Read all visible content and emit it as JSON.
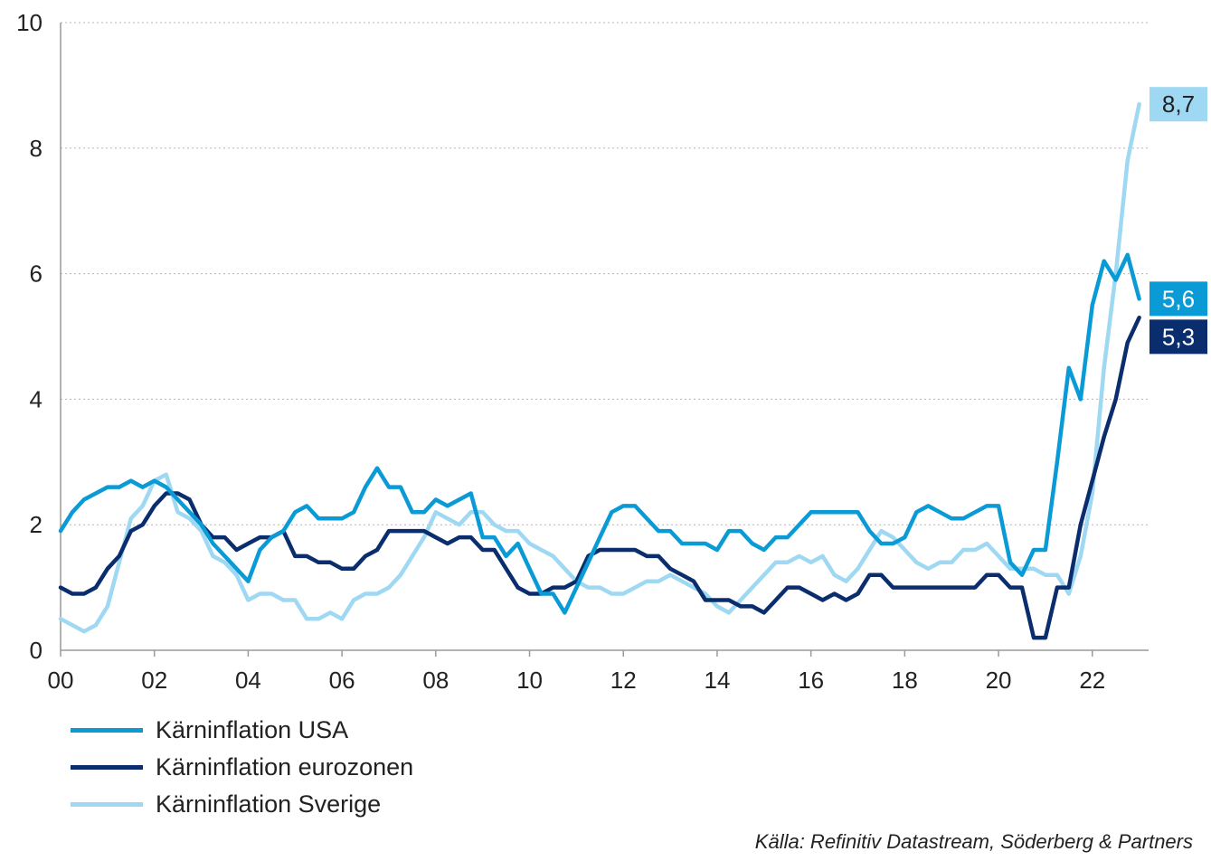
{
  "chart_data": {
    "type": "line",
    "title": "",
    "xlabel": "",
    "ylabel": "",
    "xlim": [
      2000,
      2023.2
    ],
    "ylim": [
      0,
      10
    ],
    "yticks": [
      0,
      2,
      4,
      6,
      8,
      10
    ],
    "x_ticks": [
      2000,
      2002,
      2004,
      2006,
      2008,
      2010,
      2012,
      2014,
      2016,
      2018,
      2020,
      2022
    ],
    "x_tick_labels": [
      "00",
      "02",
      "04",
      "06",
      "08",
      "10",
      "12",
      "14",
      "16",
      "18",
      "20",
      "22"
    ],
    "grid": "horizontal dotted",
    "legend_position": "bottom-left",
    "series": [
      {
        "name": "Kärninflation USA",
        "color": "#0a9bd6",
        "end_label": "5,6",
        "points": [
          [
            2000.0,
            1.9
          ],
          [
            2000.25,
            2.2
          ],
          [
            2000.5,
            2.4
          ],
          [
            2000.75,
            2.5
          ],
          [
            2001.0,
            2.6
          ],
          [
            2001.25,
            2.6
          ],
          [
            2001.5,
            2.7
          ],
          [
            2001.75,
            2.6
          ],
          [
            2002.0,
            2.7
          ],
          [
            2002.25,
            2.6
          ],
          [
            2002.5,
            2.4
          ],
          [
            2002.75,
            2.2
          ],
          [
            2003.0,
            2.0
          ],
          [
            2003.25,
            1.7
          ],
          [
            2003.5,
            1.5
          ],
          [
            2003.75,
            1.3
          ],
          [
            2004.0,
            1.1
          ],
          [
            2004.25,
            1.6
          ],
          [
            2004.5,
            1.8
          ],
          [
            2004.75,
            1.9
          ],
          [
            2005.0,
            2.2
          ],
          [
            2005.25,
            2.3
          ],
          [
            2005.5,
            2.1
          ],
          [
            2005.75,
            2.1
          ],
          [
            2006.0,
            2.1
          ],
          [
            2006.25,
            2.2
          ],
          [
            2006.5,
            2.6
          ],
          [
            2006.75,
            2.9
          ],
          [
            2007.0,
            2.6
          ],
          [
            2007.25,
            2.6
          ],
          [
            2007.5,
            2.2
          ],
          [
            2007.75,
            2.2
          ],
          [
            2008.0,
            2.4
          ],
          [
            2008.25,
            2.3
          ],
          [
            2008.5,
            2.4
          ],
          [
            2008.75,
            2.5
          ],
          [
            2009.0,
            1.8
          ],
          [
            2009.25,
            1.8
          ],
          [
            2009.5,
            1.5
          ],
          [
            2009.75,
            1.7
          ],
          [
            2010.0,
            1.3
          ],
          [
            2010.25,
            0.9
          ],
          [
            2010.5,
            0.9
          ],
          [
            2010.75,
            0.6
          ],
          [
            2011.0,
            1.0
          ],
          [
            2011.25,
            1.4
          ],
          [
            2011.5,
            1.8
          ],
          [
            2011.75,
            2.2
          ],
          [
            2012.0,
            2.3
          ],
          [
            2012.25,
            2.3
          ],
          [
            2012.5,
            2.1
          ],
          [
            2012.75,
            1.9
          ],
          [
            2013.0,
            1.9
          ],
          [
            2013.25,
            1.7
          ],
          [
            2013.5,
            1.7
          ],
          [
            2013.75,
            1.7
          ],
          [
            2014.0,
            1.6
          ],
          [
            2014.25,
            1.9
          ],
          [
            2014.5,
            1.9
          ],
          [
            2014.75,
            1.7
          ],
          [
            2015.0,
            1.6
          ],
          [
            2015.25,
            1.8
          ],
          [
            2015.5,
            1.8
          ],
          [
            2015.75,
            2.0
          ],
          [
            2016.0,
            2.2
          ],
          [
            2016.25,
            2.2
          ],
          [
            2016.5,
            2.2
          ],
          [
            2016.75,
            2.2
          ],
          [
            2017.0,
            2.2
          ],
          [
            2017.25,
            1.9
          ],
          [
            2017.5,
            1.7
          ],
          [
            2017.75,
            1.7
          ],
          [
            2018.0,
            1.8
          ],
          [
            2018.25,
            2.2
          ],
          [
            2018.5,
            2.3
          ],
          [
            2018.75,
            2.2
          ],
          [
            2019.0,
            2.1
          ],
          [
            2019.25,
            2.1
          ],
          [
            2019.5,
            2.2
          ],
          [
            2019.75,
            2.3
          ],
          [
            2020.0,
            2.3
          ],
          [
            2020.25,
            1.4
          ],
          [
            2020.5,
            1.2
          ],
          [
            2020.75,
            1.6
          ],
          [
            2021.0,
            1.6
          ],
          [
            2021.25,
            3.0
          ],
          [
            2021.5,
            4.5
          ],
          [
            2021.75,
            4.0
          ],
          [
            2022.0,
            5.5
          ],
          [
            2022.25,
            6.2
          ],
          [
            2022.5,
            5.9
          ],
          [
            2022.75,
            6.3
          ],
          [
            2023.0,
            5.6
          ]
        ]
      },
      {
        "name": "Kärninflation eurozonen",
        "color": "#0a2d6e",
        "end_label": "5,3",
        "points": [
          [
            2000.0,
            1.0
          ],
          [
            2000.25,
            0.9
          ],
          [
            2000.5,
            0.9
          ],
          [
            2000.75,
            1.0
          ],
          [
            2001.0,
            1.3
          ],
          [
            2001.25,
            1.5
          ],
          [
            2001.5,
            1.9
          ],
          [
            2001.75,
            2.0
          ],
          [
            2002.0,
            2.3
          ],
          [
            2002.25,
            2.5
          ],
          [
            2002.5,
            2.5
          ],
          [
            2002.75,
            2.4
          ],
          [
            2003.0,
            2.0
          ],
          [
            2003.25,
            1.8
          ],
          [
            2003.5,
            1.8
          ],
          [
            2003.75,
            1.6
          ],
          [
            2004.0,
            1.7
          ],
          [
            2004.25,
            1.8
          ],
          [
            2004.5,
            1.8
          ],
          [
            2004.75,
            1.9
          ],
          [
            2005.0,
            1.5
          ],
          [
            2005.25,
            1.5
          ],
          [
            2005.5,
            1.4
          ],
          [
            2005.75,
            1.4
          ],
          [
            2006.0,
            1.3
          ],
          [
            2006.25,
            1.3
          ],
          [
            2006.5,
            1.5
          ],
          [
            2006.75,
            1.6
          ],
          [
            2007.0,
            1.9
          ],
          [
            2007.25,
            1.9
          ],
          [
            2007.5,
            1.9
          ],
          [
            2007.75,
            1.9
          ],
          [
            2008.0,
            1.8
          ],
          [
            2008.25,
            1.7
          ],
          [
            2008.5,
            1.8
          ],
          [
            2008.75,
            1.8
          ],
          [
            2009.0,
            1.6
          ],
          [
            2009.25,
            1.6
          ],
          [
            2009.5,
            1.3
          ],
          [
            2009.75,
            1.0
          ],
          [
            2010.0,
            0.9
          ],
          [
            2010.25,
            0.9
          ],
          [
            2010.5,
            1.0
          ],
          [
            2010.75,
            1.0
          ],
          [
            2011.0,
            1.1
          ],
          [
            2011.25,
            1.5
          ],
          [
            2011.5,
            1.6
          ],
          [
            2011.75,
            1.6
          ],
          [
            2012.0,
            1.6
          ],
          [
            2012.25,
            1.6
          ],
          [
            2012.5,
            1.5
          ],
          [
            2012.75,
            1.5
          ],
          [
            2013.0,
            1.3
          ],
          [
            2013.25,
            1.2
          ],
          [
            2013.5,
            1.1
          ],
          [
            2013.75,
            0.8
          ],
          [
            2014.0,
            0.8
          ],
          [
            2014.25,
            0.8
          ],
          [
            2014.5,
            0.7
          ],
          [
            2014.75,
            0.7
          ],
          [
            2015.0,
            0.6
          ],
          [
            2015.25,
            0.8
          ],
          [
            2015.5,
            1.0
          ],
          [
            2015.75,
            1.0
          ],
          [
            2016.0,
            0.9
          ],
          [
            2016.25,
            0.8
          ],
          [
            2016.5,
            0.9
          ],
          [
            2016.75,
            0.8
          ],
          [
            2017.0,
            0.9
          ],
          [
            2017.25,
            1.2
          ],
          [
            2017.5,
            1.2
          ],
          [
            2017.75,
            1.0
          ],
          [
            2018.0,
            1.0
          ],
          [
            2018.25,
            1.0
          ],
          [
            2018.5,
            1.0
          ],
          [
            2018.75,
            1.0
          ],
          [
            2019.0,
            1.0
          ],
          [
            2019.25,
            1.0
          ],
          [
            2019.5,
            1.0
          ],
          [
            2019.75,
            1.2
          ],
          [
            2020.0,
            1.2
          ],
          [
            2020.25,
            1.0
          ],
          [
            2020.5,
            1.0
          ],
          [
            2020.75,
            0.2
          ],
          [
            2021.0,
            0.2
          ],
          [
            2021.25,
            1.0
          ],
          [
            2021.5,
            1.0
          ],
          [
            2021.75,
            2.0
          ],
          [
            2022.0,
            2.7
          ],
          [
            2022.25,
            3.4
          ],
          [
            2022.5,
            4.0
          ],
          [
            2022.75,
            4.9
          ],
          [
            2023.0,
            5.3
          ]
        ]
      },
      {
        "name": "Kärninflation Sverige",
        "color": "#9fd8f2",
        "end_label": "8,7",
        "points": [
          [
            2000.0,
            0.5
          ],
          [
            2000.25,
            0.4
          ],
          [
            2000.5,
            0.3
          ],
          [
            2000.75,
            0.4
          ],
          [
            2001.0,
            0.7
          ],
          [
            2001.25,
            1.4
          ],
          [
            2001.5,
            2.1
          ],
          [
            2001.75,
            2.3
          ],
          [
            2002.0,
            2.7
          ],
          [
            2002.25,
            2.8
          ],
          [
            2002.5,
            2.2
          ],
          [
            2002.75,
            2.1
          ],
          [
            2003.0,
            1.9
          ],
          [
            2003.25,
            1.5
          ],
          [
            2003.5,
            1.4
          ],
          [
            2003.75,
            1.2
          ],
          [
            2004.0,
            0.8
          ],
          [
            2004.25,
            0.9
          ],
          [
            2004.5,
            0.9
          ],
          [
            2004.75,
            0.8
          ],
          [
            2005.0,
            0.8
          ],
          [
            2005.25,
            0.5
          ],
          [
            2005.5,
            0.5
          ],
          [
            2005.75,
            0.6
          ],
          [
            2006.0,
            0.5
          ],
          [
            2006.25,
            0.8
          ],
          [
            2006.5,
            0.9
          ],
          [
            2006.75,
            0.9
          ],
          [
            2007.0,
            1.0
          ],
          [
            2007.25,
            1.2
          ],
          [
            2007.5,
            1.5
          ],
          [
            2007.75,
            1.8
          ],
          [
            2008.0,
            2.2
          ],
          [
            2008.25,
            2.1
          ],
          [
            2008.5,
            2.0
          ],
          [
            2008.75,
            2.2
          ],
          [
            2009.0,
            2.2
          ],
          [
            2009.25,
            2.0
          ],
          [
            2009.5,
            1.9
          ],
          [
            2009.75,
            1.9
          ],
          [
            2010.0,
            1.7
          ],
          [
            2010.25,
            1.6
          ],
          [
            2010.5,
            1.5
          ],
          [
            2010.75,
            1.3
          ],
          [
            2011.0,
            1.1
          ],
          [
            2011.25,
            1.0
          ],
          [
            2011.5,
            1.0
          ],
          [
            2011.75,
            0.9
          ],
          [
            2012.0,
            0.9
          ],
          [
            2012.25,
            1.0
          ],
          [
            2012.5,
            1.1
          ],
          [
            2012.75,
            1.1
          ],
          [
            2013.0,
            1.2
          ],
          [
            2013.25,
            1.1
          ],
          [
            2013.5,
            1.0
          ],
          [
            2013.75,
            0.9
          ],
          [
            2014.0,
            0.7
          ],
          [
            2014.25,
            0.6
          ],
          [
            2014.5,
            0.8
          ],
          [
            2014.75,
            1.0
          ],
          [
            2015.0,
            1.2
          ],
          [
            2015.25,
            1.4
          ],
          [
            2015.5,
            1.4
          ],
          [
            2015.75,
            1.5
          ],
          [
            2016.0,
            1.4
          ],
          [
            2016.25,
            1.5
          ],
          [
            2016.5,
            1.2
          ],
          [
            2016.75,
            1.1
          ],
          [
            2017.0,
            1.3
          ],
          [
            2017.25,
            1.6
          ],
          [
            2017.5,
            1.9
          ],
          [
            2017.75,
            1.8
          ],
          [
            2018.0,
            1.6
          ],
          [
            2018.25,
            1.4
          ],
          [
            2018.5,
            1.3
          ],
          [
            2018.75,
            1.4
          ],
          [
            2019.0,
            1.4
          ],
          [
            2019.25,
            1.6
          ],
          [
            2019.5,
            1.6
          ],
          [
            2019.75,
            1.7
          ],
          [
            2020.0,
            1.5
          ],
          [
            2020.25,
            1.3
          ],
          [
            2020.5,
            1.3
          ],
          [
            2020.75,
            1.3
          ],
          [
            2021.0,
            1.2
          ],
          [
            2021.25,
            1.2
          ],
          [
            2021.5,
            0.9
          ],
          [
            2021.75,
            1.5
          ],
          [
            2022.0,
            2.5
          ],
          [
            2022.25,
            4.5
          ],
          [
            2022.5,
            6.0
          ],
          [
            2022.75,
            7.8
          ],
          [
            2023.0,
            8.7
          ]
        ]
      }
    ]
  },
  "legend": {
    "items": [
      {
        "label": "Kärninflation USA",
        "color": "#0a9bd6"
      },
      {
        "label": "Kärninflation eurozonen",
        "color": "#0a2d6e"
      },
      {
        "label": "Kärninflation Sverige",
        "color": "#9fd8f2"
      }
    ]
  },
  "source": "Källa: Refinitiv Datastream, Söderberg & Partners"
}
